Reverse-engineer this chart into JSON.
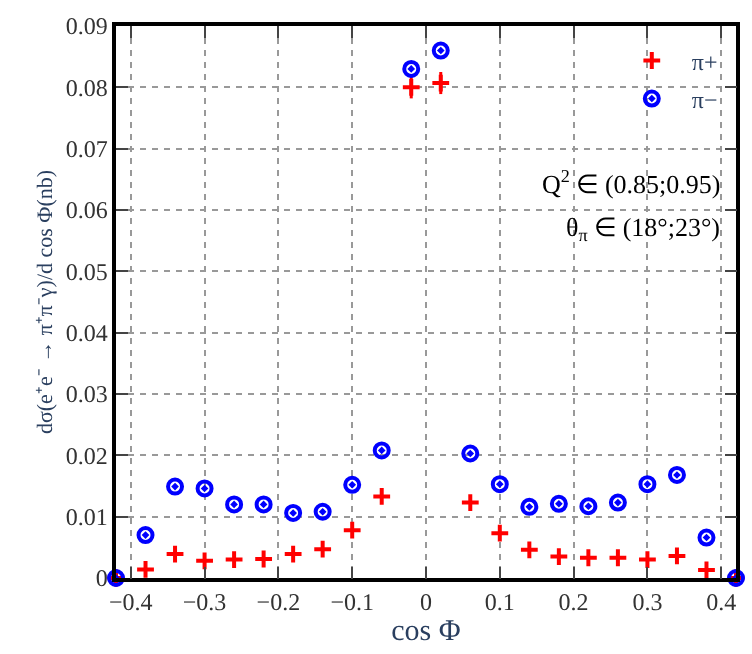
{
  "chart_data": {
    "type": "scatter",
    "xlabel": "cos Φ",
    "ylabel": "dσ(e⁺e⁻ → π⁺π⁻γ)/d cos Φ(nb)",
    "x": [
      -0.42,
      -0.38,
      -0.34,
      -0.3,
      -0.26,
      -0.22,
      -0.18,
      -0.14,
      -0.1,
      -0.06,
      -0.02,
      0.02,
      0.06,
      0.1,
      0.14,
      0.18,
      0.22,
      0.26,
      0.3,
      0.34,
      0.38,
      0.42
    ],
    "series": [
      {
        "name": "π+",
        "color": "#ff0000",
        "marker": "cross",
        "values": [
          0,
          0.0014,
          0.0039,
          0.0028,
          0.003,
          0.0031,
          0.0039,
          0.0047,
          0.0078,
          0.0133,
          0.08,
          0.0807,
          0.0123,
          0.0073,
          0.0046,
          0.0035,
          0.0033,
          0.0033,
          0.003,
          0.0036,
          0.0013,
          0
        ],
        "errors": [
          null,
          null,
          null,
          null,
          null,
          null,
          null,
          null,
          null,
          null,
          0.0018,
          0.0018,
          null,
          null,
          null,
          null,
          null,
          null,
          null,
          null,
          null,
          null
        ]
      },
      {
        "name": "π−",
        "color": "#0000ff",
        "marker": "circle",
        "values": [
          0,
          0.007,
          0.0149,
          0.0146,
          0.012,
          0.012,
          0.0106,
          0.0108,
          0.0152,
          0.0208,
          0.083,
          0.086,
          0.0203,
          0.0153,
          0.0116,
          0.0121,
          0.0117,
          0.0123,
          0.0153,
          0.0168,
          0.0066,
          0
        ]
      }
    ],
    "xlim": [
      -0.42,
      0.42
    ],
    "xticks": [
      -0.4,
      -0.3,
      -0.2,
      -0.1,
      0,
      0.1,
      0.2,
      0.3,
      0.4
    ],
    "ylim": [
      0,
      0.09
    ],
    "yticks": [
      0,
      0.01,
      0.02,
      0.03,
      0.04,
      0.05,
      0.06,
      0.07,
      0.08,
      0.09
    ],
    "grid": true,
    "legend": "top right",
    "annotations": [
      {
        "text": "Q$^{2}$ ∈ (0.85;0.95)"
      },
      {
        "text": "θ$_{π}$ ∈ (18°;23°)"
      }
    ]
  }
}
